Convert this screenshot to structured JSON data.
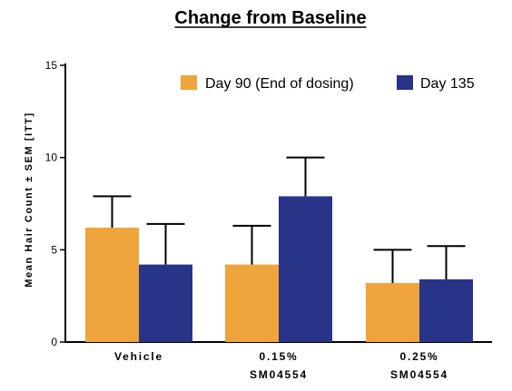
{
  "chart_data": {
    "type": "bar",
    "title": "Change from Baseline",
    "ylabel": "Mean Hair Count ± SEM [ITT]",
    "xlabel": "",
    "ylim": [
      0,
      15
    ],
    "yticks": [
      0,
      5,
      10,
      15
    ],
    "categories": [
      [
        "Vehicle"
      ],
      [
        "0.15%",
        "SM04554"
      ],
      [
        "0.25%",
        "SM04554"
      ]
    ],
    "series": [
      {
        "name": "Day 90 (End of dosing)",
        "color": "#EFA43C",
        "values": [
          6.2,
          4.2,
          3.2
        ],
        "errors": [
          1.7,
          2.1,
          1.8
        ]
      },
      {
        "name": "Day 135",
        "color": "#283487",
        "values": [
          4.2,
          7.9,
          3.4
        ],
        "errors": [
          2.2,
          2.1,
          1.8
        ]
      }
    ],
    "grid": false,
    "legend_position": "top-right"
  }
}
